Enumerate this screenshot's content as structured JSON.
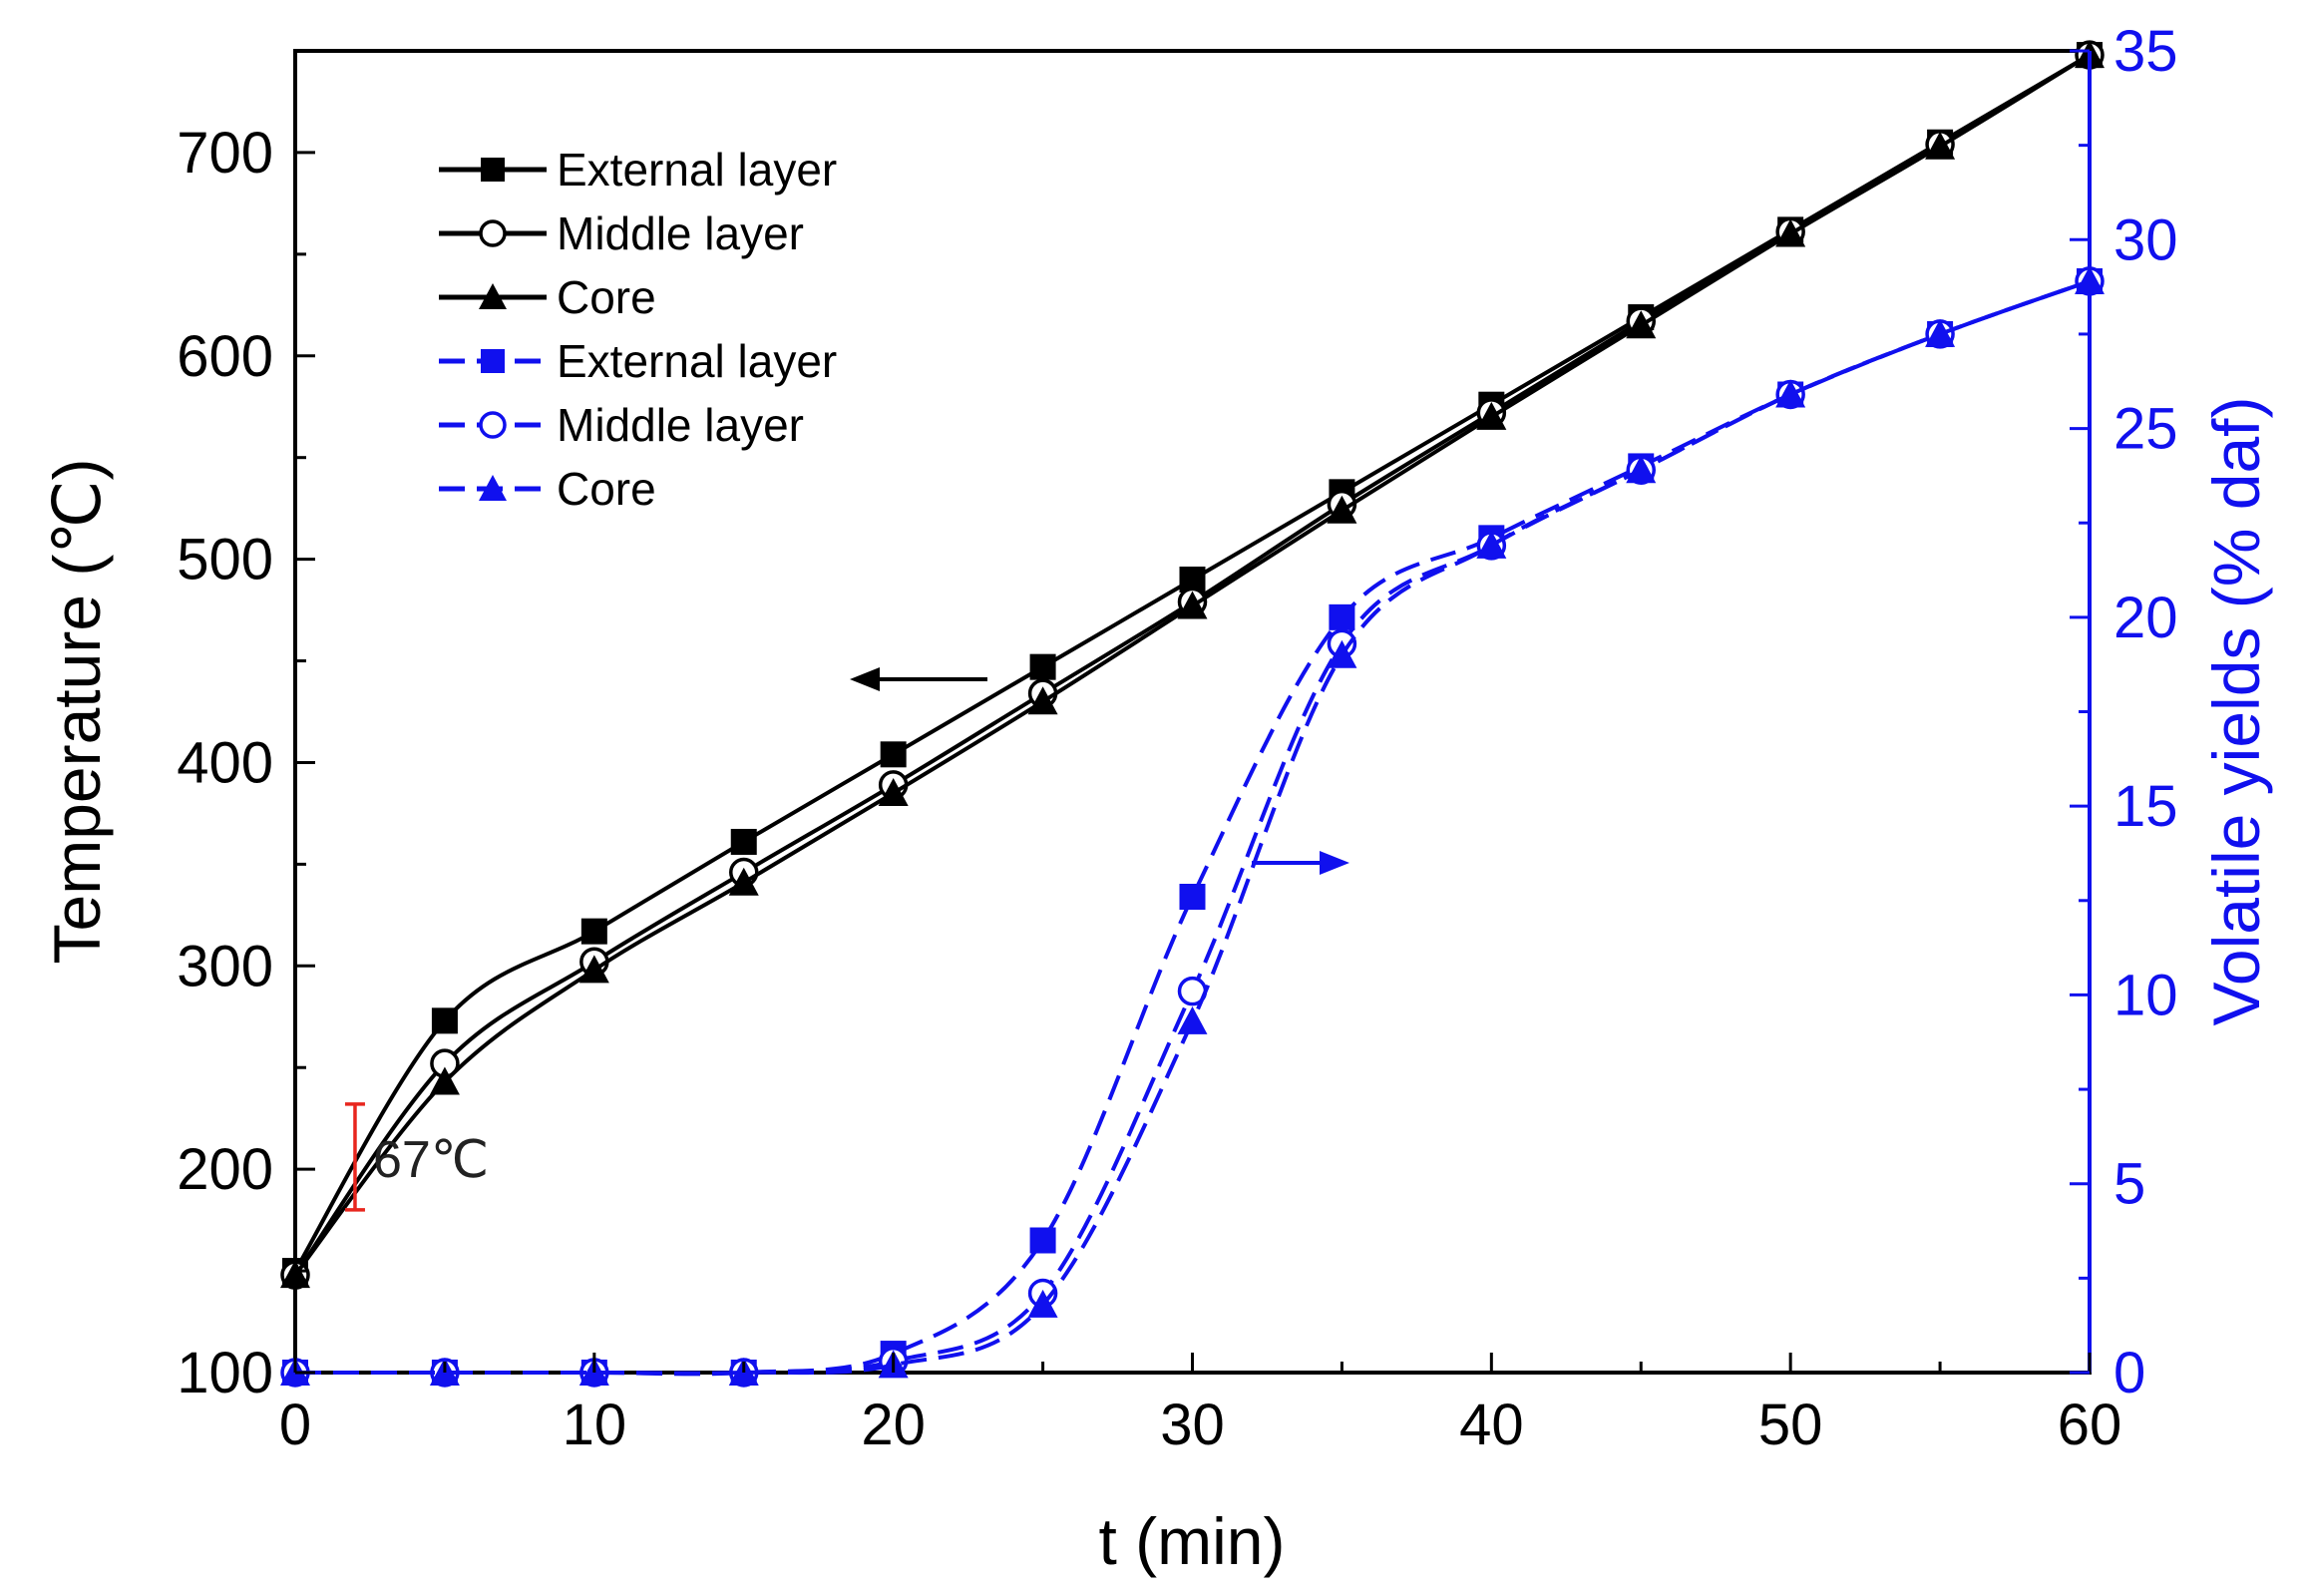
{
  "chart_data": {
    "type": "line",
    "x": [
      0,
      5,
      10,
      15,
      20,
      25,
      30,
      35,
      40,
      45,
      50,
      55,
      60
    ],
    "xlabel": "t (min)",
    "xlim": [
      0,
      60
    ],
    "xticks": [
      "0",
      "10",
      "20",
      "30",
      "40",
      "50",
      "60"
    ],
    "xtick_values": [
      0,
      10,
      20,
      30,
      40,
      50,
      60
    ],
    "ylabel": "Temperature (℃)",
    "ylim": [
      100,
      750
    ],
    "yticks": [
      "100",
      "200",
      "300",
      "400",
      "500",
      "600",
      "700"
    ],
    "ytick_values": [
      100,
      200,
      300,
      400,
      500,
      600,
      700
    ],
    "y2label": "Volatile yields (% daf)",
    "y2lim": [
      0,
      35
    ],
    "y2ticks": [
      "0",
      "5",
      "10",
      "15",
      "20",
      "25",
      "30",
      "35"
    ],
    "y2tick_values": [
      0,
      5,
      10,
      15,
      20,
      25,
      30,
      35
    ],
    "grid": false,
    "legend_position": "top-left",
    "colors": {
      "temperature": "#000000",
      "volatile": "#1010ee",
      "annotation": "#e8261e"
    },
    "series": [
      {
        "name": "External layer",
        "axis": "left",
        "color": "#000000",
        "dash": "solid",
        "marker": "square",
        "values": [
          150,
          273,
          317,
          361,
          404,
          447,
          490,
          533,
          576,
          619,
          662,
          705,
          748
        ]
      },
      {
        "name": "Middle layer",
        "axis": "left",
        "color": "#000000",
        "dash": "solid",
        "marker": "circle-open",
        "values": [
          148,
          252,
          302,
          346,
          389,
          434,
          479,
          527,
          572,
          617,
          661,
          704,
          748
        ]
      },
      {
        "name": "Core",
        "axis": "left",
        "color": "#000000",
        "dash": "solid",
        "marker": "triangle",
        "values": [
          148,
          243,
          298,
          341,
          385,
          430,
          477,
          524,
          570,
          615,
          660,
          703,
          748
        ]
      },
      {
        "name": "External layer",
        "axis": "right",
        "color": "#1010ee",
        "dash": "dashed",
        "marker": "square",
        "values": [
          0,
          0,
          0,
          0,
          0.5,
          3.5,
          12.6,
          20.0,
          22.1,
          24.0,
          25.9,
          27.5,
          28.9
        ]
      },
      {
        "name": "Middle layer",
        "axis": "right",
        "color": "#1010ee",
        "dash": "dashed",
        "marker": "circle-open",
        "values": [
          0,
          0,
          0,
          0,
          0.3,
          2.1,
          10.1,
          19.3,
          21.9,
          23.9,
          25.9,
          27.5,
          28.9
        ]
      },
      {
        "name": "Core",
        "axis": "right",
        "color": "#1010ee",
        "dash": "dashed",
        "marker": "triangle",
        "values": [
          0,
          0,
          0,
          0,
          0.2,
          1.8,
          9.3,
          19.0,
          21.9,
          23.9,
          25.9,
          27.5,
          28.9
        ]
      }
    ],
    "annotations": [
      {
        "text": "67℃",
        "at_t": 2,
        "temp_low": 180,
        "temp_high": 232
      },
      {
        "direction": "left",
        "meaning": "temperature curves use left axis"
      },
      {
        "direction": "right",
        "meaning": "volatile yield curves use right axis"
      }
    ]
  }
}
